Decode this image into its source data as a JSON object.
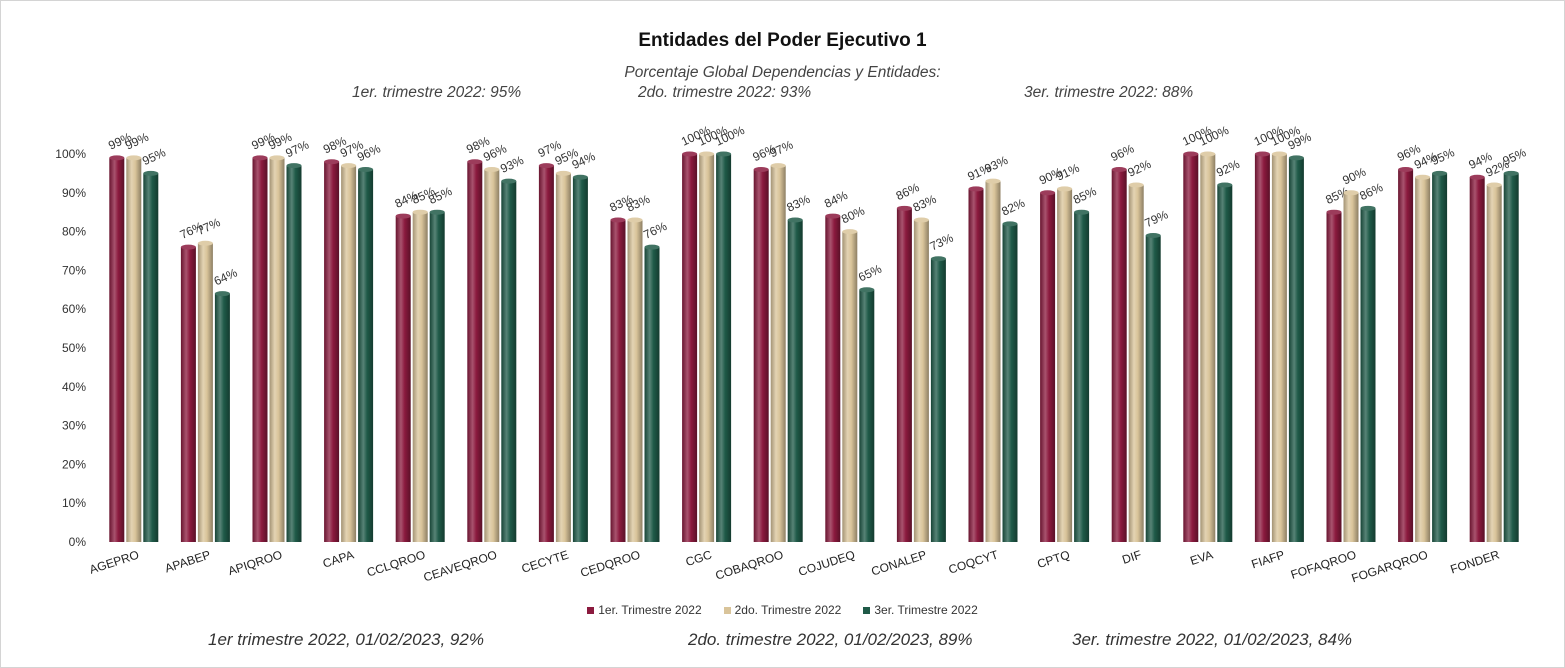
{
  "chart_data": {
    "type": "bar",
    "title": "Entidades del Poder Ejecutivo 1",
    "categories": [
      "AGEPRO",
      "APABEP",
      "APIQROO",
      "CAPA",
      "CCLQROO",
      "CEAVEQROO",
      "CECYTE",
      "CEDQROO",
      "CGC",
      "COBAQROO",
      "COJUDEQ",
      "CONALEP",
      "COQCYT",
      "CPTQ",
      "DIF",
      "EVA",
      "FIAFP",
      "FOFAQROO",
      "FOGARQROO",
      "FONDER"
    ],
    "series": [
      {
        "name": "1er. Trimestre 2022",
        "color": "#8b1a3e",
        "values": [
          99,
          76,
          99,
          98,
          84,
          98,
          97,
          83,
          100,
          96,
          84,
          86,
          91,
          90,
          96,
          100,
          100,
          85,
          96,
          94
        ],
        "labels": [
          "99%",
          "76%",
          "99%",
          "98%",
          "84%",
          "98%",
          "97%",
          "83%",
          "100%",
          "96%",
          "84%",
          "86%",
          "91%",
          "90%",
          "96%",
          "100%",
          "100%",
          "85%",
          "96%",
          "94%"
        ]
      },
      {
        "name": "2do. Trimestre 2022",
        "color": "#d9c49a",
        "values": [
          99,
          77,
          99,
          97,
          85,
          96,
          95,
          83,
          100,
          97,
          80,
          83,
          93,
          91,
          92,
          100,
          100,
          90,
          94,
          92
        ],
        "labels": [
          "99%",
          "77%",
          "99%",
          "97%",
          "85%",
          "96%",
          "95%",
          "83%",
          "100%",
          "97%",
          "80%",
          "83%",
          "93%",
          "91%",
          "92%",
          "100%",
          "100%",
          "90%",
          "94%",
          "92%"
        ]
      },
      {
        "name": "3er. Trimestre 2022",
        "color": "#1f5a48",
        "values": [
          95,
          64,
          97,
          96,
          85,
          93,
          94,
          76,
          100,
          83,
          65,
          73,
          82,
          85,
          79,
          92,
          99,
          86,
          95,
          95
        ],
        "labels": [
          "95%",
          "64%",
          "97%",
          "96%",
          "85%",
          "93%",
          "94%",
          "76%",
          "100%",
          "83%",
          "65%",
          "73%",
          "82%",
          "85%",
          "79%",
          "92%",
          "99%",
          "86%",
          "95%",
          "95%"
        ]
      }
    ],
    "yticks": [
      "0%",
      "10%",
      "20%",
      "30%",
      "40%",
      "50%",
      "60%",
      "70%",
      "80%",
      "90%",
      "100%"
    ],
    "ylim": [
      0,
      100
    ],
    "legend": "bottom",
    "grid": false
  },
  "header_notes": {
    "line1": "Porcentaje Global  Dependencias y Entidades:",
    "q1": "1er. trimestre 2022: 95%",
    "q2": "2do. trimestre 2022: 93%",
    "q3": "3er. trimestre 2022: 88%"
  },
  "footer_notes": {
    "q1": "1er trimestre  2022,  01/02/2023, 92%",
    "q2": "2do. trimestre 2022, 01/02/2023, 89%",
    "q3": "3er. trimestre 2022, 01/02/2023, 84%"
  }
}
